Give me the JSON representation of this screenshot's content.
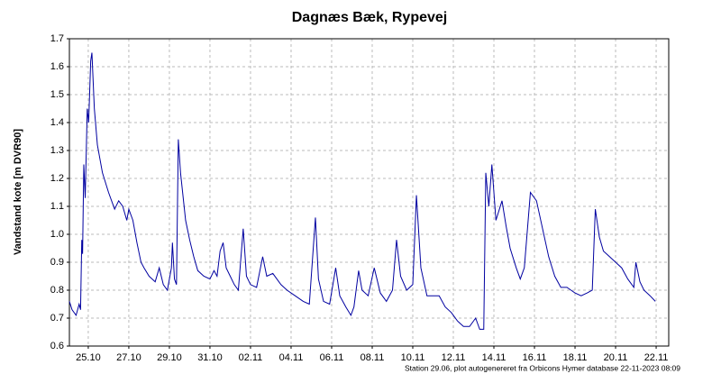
{
  "chart_data": {
    "type": "line",
    "title": "Dagnæs Bæk, Rypevej",
    "y_label": "Vandstand kote [m DVR90]",
    "footnote": "Station 29.06, plot autogenereret fra Orbicons Hymer database 22-11-2023 08:09",
    "color": "#0000a0",
    "grid": true,
    "xlim": [
      24.07,
      53.62
    ],
    "ylim": [
      0.6,
      1.7
    ],
    "xticks": [
      {
        "value": 25,
        "label": "25.10"
      },
      {
        "value": 27,
        "label": "27.10"
      },
      {
        "value": 29,
        "label": "29.10"
      },
      {
        "value": 31,
        "label": "31.10"
      },
      {
        "value": 33,
        "label": "02.11"
      },
      {
        "value": 35,
        "label": "04.11"
      },
      {
        "value": 37,
        "label": "06.11"
      },
      {
        "value": 39,
        "label": "08.11"
      },
      {
        "value": 41,
        "label": "10.11"
      },
      {
        "value": 43,
        "label": "12.11"
      },
      {
        "value": 45,
        "label": "14.11"
      },
      {
        "value": 47,
        "label": "16.11"
      },
      {
        "value": 49,
        "label": "18.11"
      },
      {
        "value": 51,
        "label": "20.11"
      },
      {
        "value": 53,
        "label": "22.11"
      }
    ],
    "yticks": [
      0.6,
      0.7,
      0.8,
      0.9,
      {
        "value": 1,
        "label": "1.0"
      },
      1.1,
      1.2,
      1.3,
      1.4,
      1.5,
      1.6,
      1.7
    ],
    "x": [
      24.07,
      24.2,
      24.4,
      24.55,
      24.62,
      24.68,
      24.72,
      24.78,
      24.85,
      24.95,
      25.02,
      25.12,
      25.18,
      25.3,
      25.45,
      25.7,
      26.0,
      26.3,
      26.5,
      26.7,
      26.9,
      27.0,
      27.2,
      27.4,
      27.6,
      27.75,
      28.0,
      28.3,
      28.5,
      28.7,
      28.9,
      29.0,
      29.1,
      29.15,
      29.25,
      29.35,
      29.44,
      29.55,
      29.8,
      30.0,
      30.2,
      30.4,
      30.7,
      31.0,
      31.2,
      31.35,
      31.5,
      31.65,
      31.8,
      32.0,
      32.2,
      32.4,
      32.64,
      32.8,
      33.0,
      33.3,
      33.6,
      33.8,
      34.1,
      34.5,
      34.8,
      35.2,
      35.6,
      35.9,
      36.2,
      36.35,
      36.6,
      36.9,
      37.2,
      37.4,
      37.7,
      37.95,
      38.1,
      38.33,
      38.5,
      38.8,
      39.1,
      39.4,
      39.7,
      40.0,
      40.2,
      40.4,
      40.7,
      41.0,
      41.18,
      41.4,
      41.7,
      42.0,
      42.3,
      42.6,
      42.9,
      43.2,
      43.5,
      43.8,
      44.1,
      44.3,
      44.5,
      44.6,
      44.75,
      44.9,
      45.1,
      45.4,
      45.6,
      45.8,
      46.1,
      46.3,
      46.5,
      46.8,
      47.1,
      47.4,
      47.7,
      48.0,
      48.3,
      48.6,
      49.0,
      49.3,
      49.6,
      49.85,
      50.0,
      50.2,
      50.4,
      50.7,
      51.0,
      51.3,
      51.6,
      51.9,
      52.0,
      52.2,
      52.4,
      52.7,
      52.96
    ],
    "values": [
      0.76,
      0.73,
      0.71,
      0.75,
      0.73,
      0.98,
      0.93,
      1.25,
      1.13,
      1.45,
      1.4,
      1.62,
      1.65,
      1.45,
      1.32,
      1.22,
      1.15,
      1.09,
      1.12,
      1.1,
      1.05,
      1.09,
      1.05,
      0.97,
      0.9,
      0.88,
      0.85,
      0.83,
      0.88,
      0.82,
      0.8,
      0.84,
      0.88,
      0.97,
      0.84,
      0.82,
      1.34,
      1.22,
      1.05,
      0.98,
      0.92,
      0.87,
      0.85,
      0.84,
      0.87,
      0.85,
      0.94,
      0.97,
      0.88,
      0.85,
      0.82,
      0.8,
      1.02,
      0.85,
      0.82,
      0.81,
      0.92,
      0.85,
      0.86,
      0.82,
      0.8,
      0.78,
      0.76,
      0.75,
      1.06,
      0.84,
      0.76,
      0.75,
      0.88,
      0.78,
      0.74,
      0.71,
      0.74,
      0.87,
      0.8,
      0.78,
      0.88,
      0.79,
      0.76,
      0.8,
      0.98,
      0.85,
      0.8,
      0.82,
      1.14,
      0.88,
      0.78,
      0.78,
      0.78,
      0.74,
      0.72,
      0.69,
      0.67,
      0.67,
      0.7,
      0.66,
      0.66,
      1.22,
      1.1,
      1.25,
      1.05,
      1.12,
      1.03,
      0.95,
      0.88,
      0.84,
      0.88,
      1.15,
      1.12,
      1.02,
      0.92,
      0.85,
      0.81,
      0.81,
      0.79,
      0.78,
      0.79,
      0.8,
      1.09,
      0.99,
      0.94,
      0.92,
      0.9,
      0.88,
      0.84,
      0.81,
      0.9,
      0.83,
      0.8,
      0.78,
      0.76
    ]
  }
}
